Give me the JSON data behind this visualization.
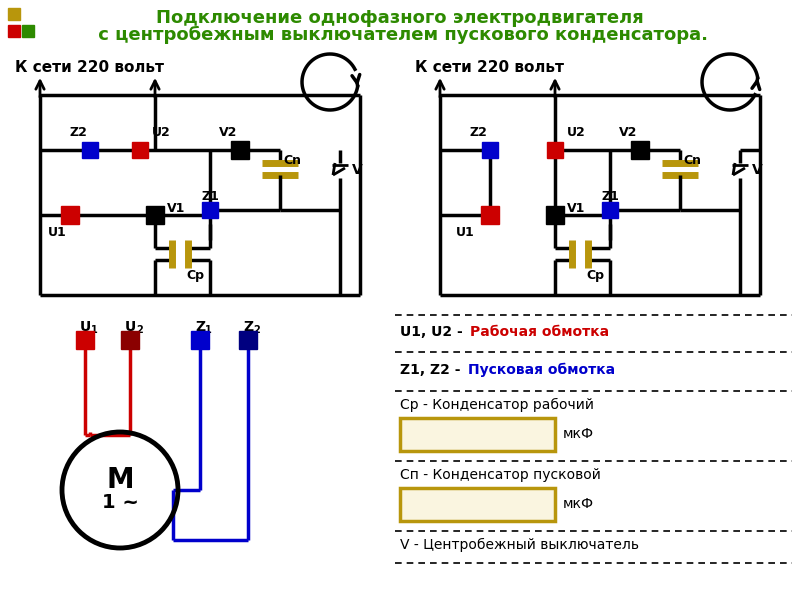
{
  "title_line1": "Подключение однофазного электродвигателя",
  "title_line2": " с центробежным выключателем пускового конденсатора.",
  "title_color": "#2d8a00",
  "bg_color": "#ffffff",
  "red_color": "#cc0000",
  "blue_color": "#0000cc",
  "black_color": "#000000",
  "gold_color": "#b8960c",
  "dark_red": "#8b0000",
  "legend_red_text": "Рабочая обмотка",
  "legend_blue_text": "Пусковая обмотка",
  "cp_label": "Ср - Конденсатор рабочий",
  "cn_label": "Сп - Конденсатор пусковой",
  "mkf_label": "мкФ",
  "v_label": "V - Центробежный выключатель",
  "net_label": "К сети 220 вольт"
}
